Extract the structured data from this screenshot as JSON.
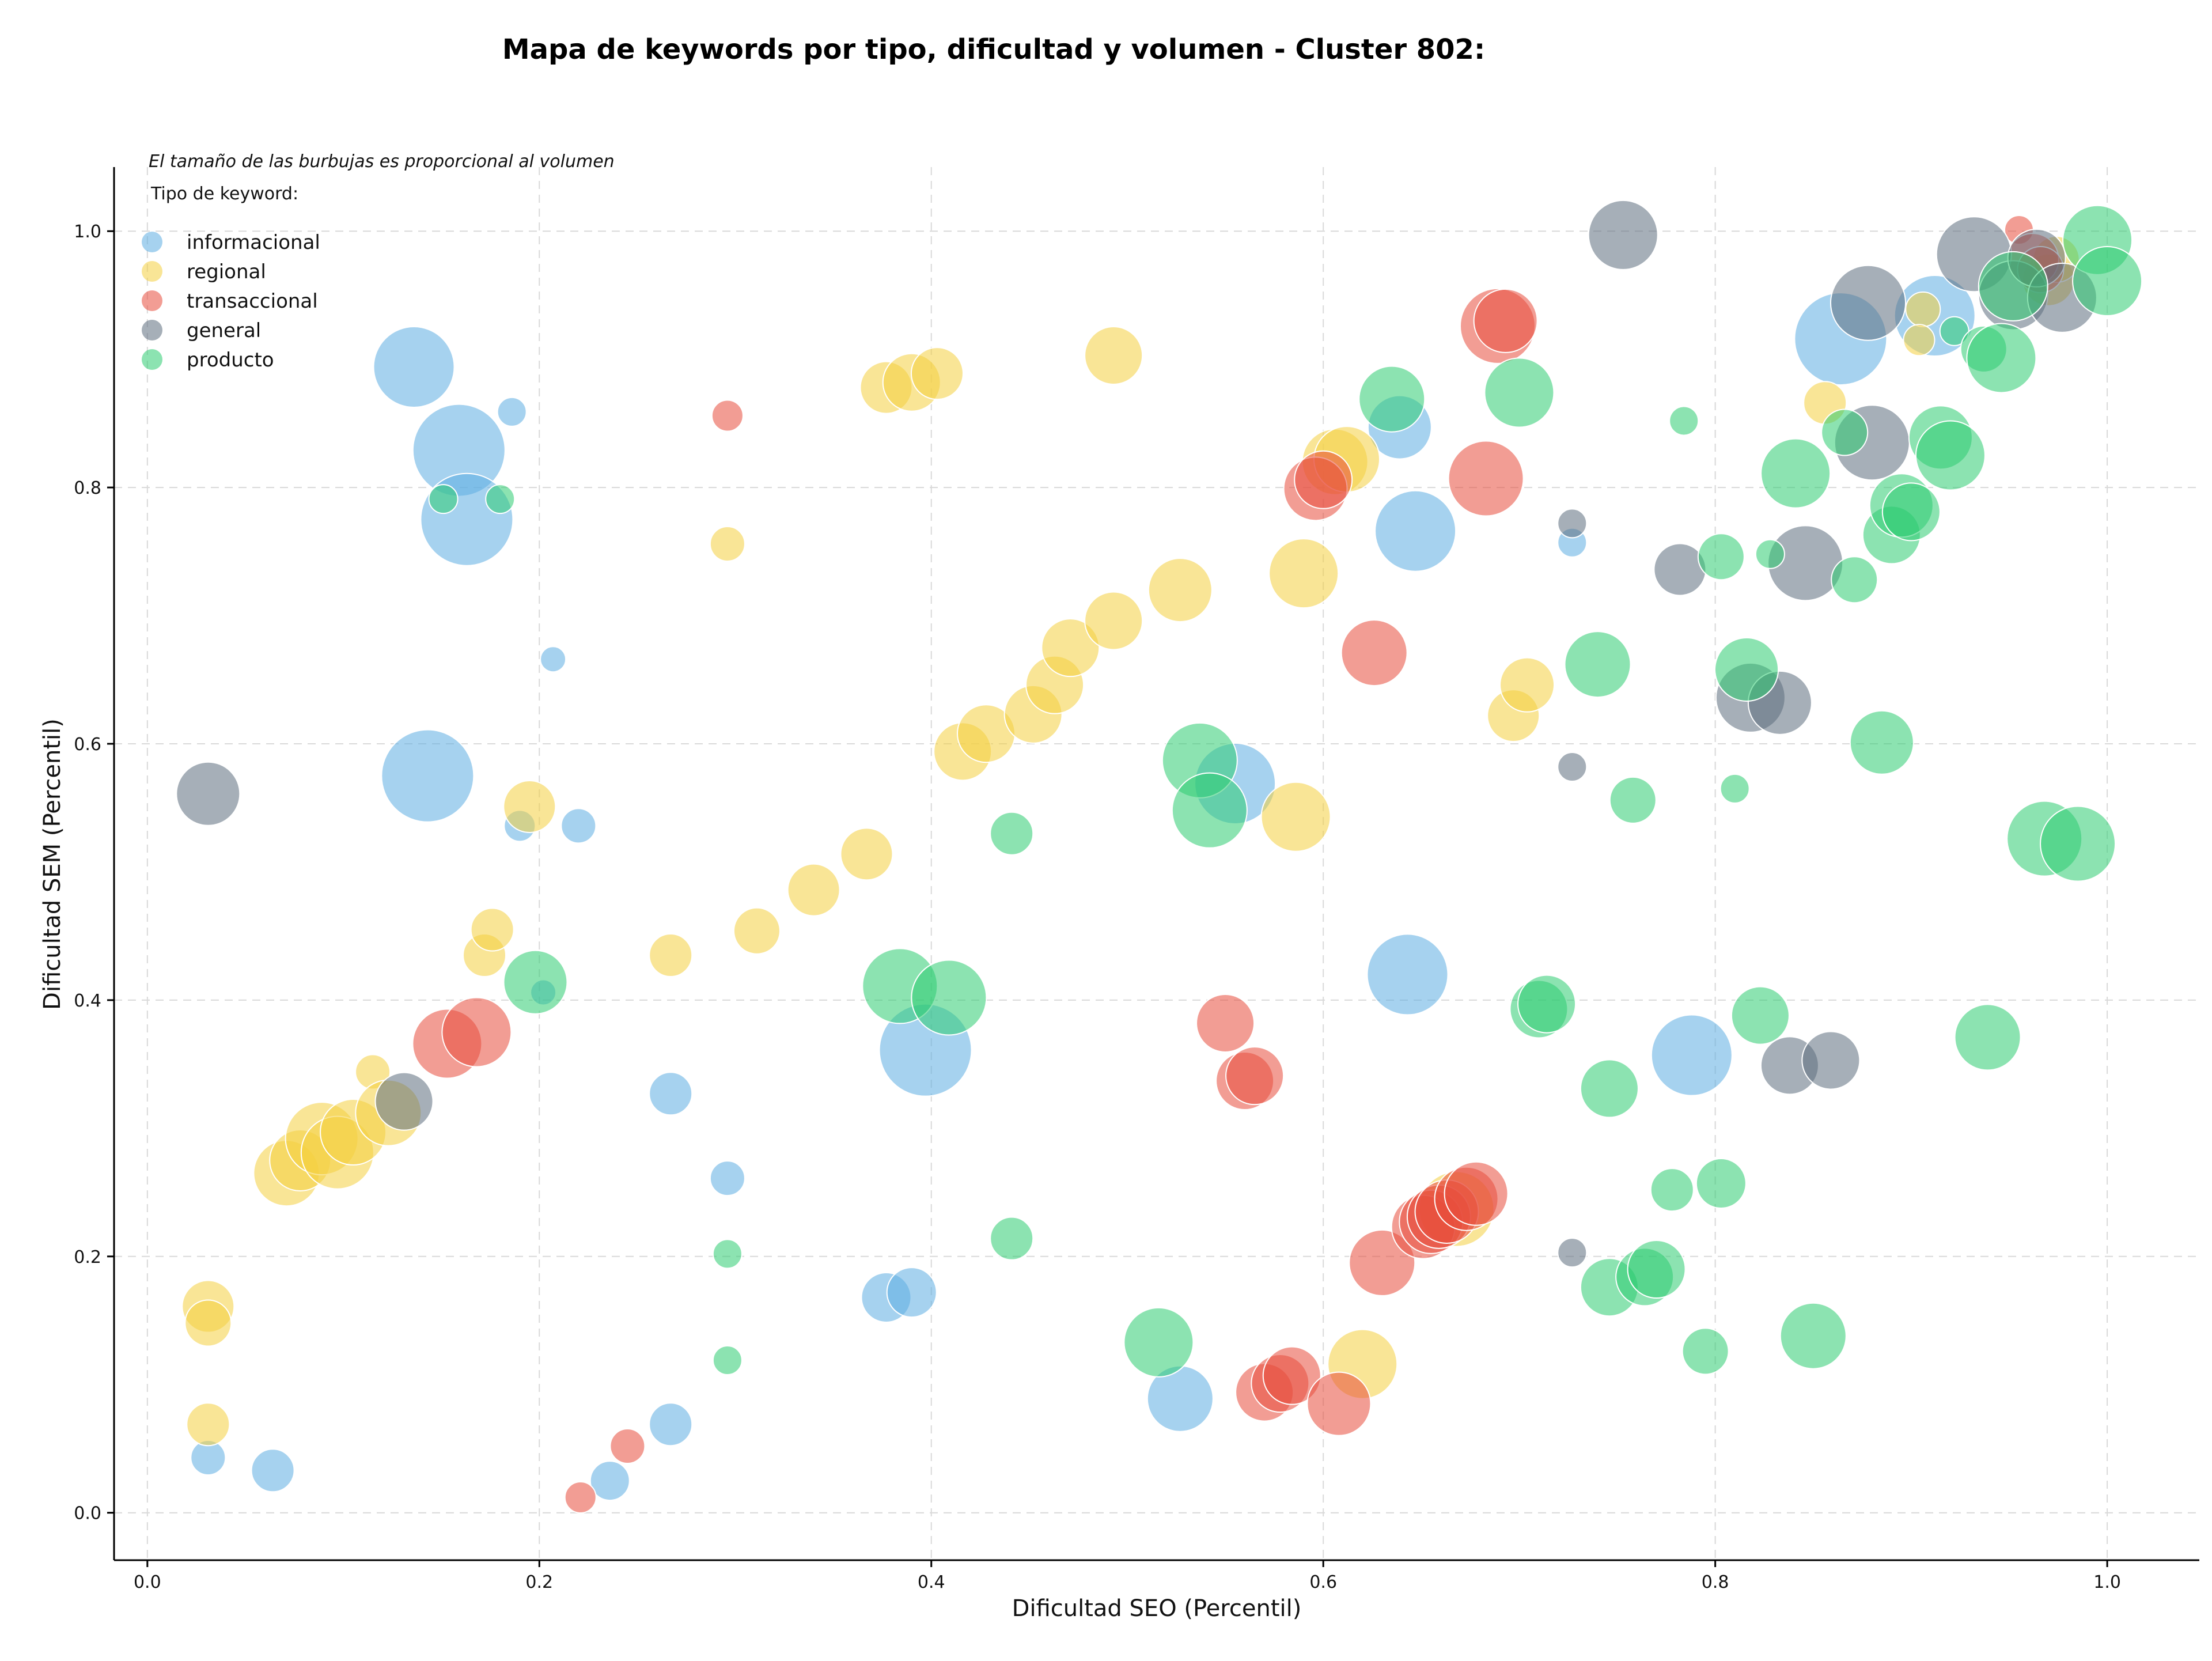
{
  "chart_data": {
    "type": "scatter",
    "title": "Mapa de keywords por tipo, dificultad y volumen - Cluster 802:",
    "xlabel": "Dificultad SEO (Percentil)",
    "ylabel": "Dificultad SEM (Percentil)",
    "note": "El tamaño de las burbujas es proporcional al volumen",
    "legend_title": "Tipo de keyword:",
    "legend_position": "top-left",
    "xlim": [
      -0.017,
      1.047
    ],
    "ylim": [
      -0.037,
      1.05
    ],
    "xticks": [
      "0.0",
      "0.2",
      "0.4",
      "0.6",
      "0.8",
      "1.0"
    ],
    "yticks": [
      "0.0",
      "0.2",
      "0.4",
      "0.6",
      "0.8",
      "1.0"
    ],
    "grid": true,
    "series": [
      {
        "name": "informacional",
        "color": "#5dade2",
        "points": [
          [
            0.136,
            0.894,
            70
          ],
          [
            0.159,
            0.829,
            80
          ],
          [
            0.163,
            0.775,
            80
          ],
          [
            0.186,
            0.859,
            25
          ],
          [
            0.207,
            0.666,
            22
          ],
          [
            0.143,
            0.575,
            80
          ],
          [
            0.19,
            0.536,
            27
          ],
          [
            0.22,
            0.536,
            30
          ],
          [
            0.202,
            0.406,
            22
          ],
          [
            0.267,
            0.327,
            37
          ],
          [
            0.296,
            0.261,
            30
          ],
          [
            0.397,
            0.361,
            80
          ],
          [
            0.377,
            0.168,
            43
          ],
          [
            0.39,
            0.172,
            43
          ],
          [
            0.267,
            0.069,
            37
          ],
          [
            0.236,
            0.025,
            34
          ],
          [
            0.064,
            0.033,
            37
          ],
          [
            0.031,
            0.043,
            30
          ],
          [
            0.527,
            0.089,
            57
          ],
          [
            0.555,
            0.569,
            70
          ],
          [
            0.639,
            0.847,
            55
          ],
          [
            0.647,
            0.766,
            70
          ],
          [
            0.643,
            0.42,
            70
          ],
          [
            0.727,
            0.757,
            25
          ],
          [
            0.788,
            0.357,
            70
          ],
          [
            0.864,
            0.916,
            80
          ],
          [
            0.912,
            0.934,
            70
          ]
        ]
      },
      {
        "name": "regional",
        "color": "#f4d03f",
        "points": [
          [
            0.071,
            0.265,
            57
          ],
          [
            0.078,
            0.275,
            53
          ],
          [
            0.089,
            0.292,
            63
          ],
          [
            0.097,
            0.281,
            63
          ],
          [
            0.105,
            0.297,
            57
          ],
          [
            0.115,
            0.344,
            30
          ],
          [
            0.123,
            0.312,
            57
          ],
          [
            0.031,
            0.161,
            45
          ],
          [
            0.031,
            0.148,
            40
          ],
          [
            0.031,
            0.069,
            37
          ],
          [
            0.172,
            0.435,
            37
          ],
          [
            0.176,
            0.455,
            37
          ],
          [
            0.195,
            0.551,
            45
          ],
          [
            0.267,
            0.435,
            37
          ],
          [
            0.311,
            0.454,
            40
          ],
          [
            0.34,
            0.486,
            45
          ],
          [
            0.367,
            0.514,
            45
          ],
          [
            0.377,
            0.878,
            45
          ],
          [
            0.39,
            0.882,
            50
          ],
          [
            0.403,
            0.889,
            45
          ],
          [
            0.296,
            0.756,
            30
          ],
          [
            0.416,
            0.594,
            50
          ],
          [
            0.428,
            0.608,
            50
          ],
          [
            0.452,
            0.623,
            50
          ],
          [
            0.463,
            0.646,
            50
          ],
          [
            0.471,
            0.675,
            50
          ],
          [
            0.493,
            0.696,
            50
          ],
          [
            0.493,
            0.903,
            50
          ],
          [
            0.527,
            0.72,
            55
          ],
          [
            0.59,
            0.733,
            60
          ],
          [
            0.586,
            0.543,
            60
          ],
          [
            0.606,
            0.82,
            57
          ],
          [
            0.612,
            0.822,
            57
          ],
          [
            0.62,
            0.116,
            60
          ],
          [
            0.668,
            0.237,
            65
          ],
          [
            0.697,
            0.622,
            45
          ],
          [
            0.704,
            0.646,
            47
          ],
          [
            0.856,
            0.866,
            37
          ],
          [
            0.906,
            0.939,
            30
          ],
          [
            0.904,
            0.915,
            27
          ],
          [
            0.97,
            0.962,
            45
          ],
          [
            0.974,
            0.978,
            40
          ]
        ]
      },
      {
        "name": "transaccional",
        "color": "#e74c3c",
        "points": [
          [
            0.153,
            0.366,
            60
          ],
          [
            0.168,
            0.375,
            60
          ],
          [
            0.296,
            0.856,
            27
          ],
          [
            0.221,
            0.012,
            27
          ],
          [
            0.245,
            0.052,
            30
          ],
          [
            0.55,
            0.382,
            50
          ],
          [
            0.56,
            0.337,
            50
          ],
          [
            0.565,
            0.341,
            50
          ],
          [
            0.57,
            0.094,
            50
          ],
          [
            0.578,
            0.101,
            50
          ],
          [
            0.584,
            0.107,
            50
          ],
          [
            0.596,
            0.799,
            55
          ],
          [
            0.6,
            0.806,
            50
          ],
          [
            0.608,
            0.085,
            55
          ],
          [
            0.626,
            0.671,
            57
          ],
          [
            0.63,
            0.195,
            57
          ],
          [
            0.651,
            0.223,
            55
          ],
          [
            0.655,
            0.227,
            55
          ],
          [
            0.659,
            0.231,
            55
          ],
          [
            0.663,
            0.235,
            55
          ],
          [
            0.673,
            0.245,
            55
          ],
          [
            0.678,
            0.249,
            55
          ],
          [
            0.683,
            0.807,
            65
          ],
          [
            0.689,
            0.926,
            65
          ],
          [
            0.693,
            0.93,
            55
          ],
          [
            0.955,
            1.001,
            25
          ],
          [
            0.962,
            0.978,
            45
          ],
          [
            0.966,
            0.97,
            40
          ]
        ]
      },
      {
        "name": "general",
        "color": "#5d6d7e",
        "points": [
          [
            0.031,
            0.561,
            55
          ],
          [
            0.131,
            0.321,
            50
          ],
          [
            0.753,
            0.997,
            60
          ],
          [
            0.727,
            0.772,
            25
          ],
          [
            0.727,
            0.582,
            25
          ],
          [
            0.727,
            0.203,
            25
          ],
          [
            0.782,
            0.736,
            45
          ],
          [
            0.818,
            0.636,
            60
          ],
          [
            0.833,
            0.632,
            55
          ],
          [
            0.838,
            0.349,
            50
          ],
          [
            0.846,
            0.741,
            65
          ],
          [
            0.859,
            0.353,
            50
          ],
          [
            0.878,
            0.944,
            65
          ],
          [
            0.88,
            0.835,
            65
          ],
          [
            0.932,
            0.982,
            65
          ],
          [
            0.952,
            0.95,
            60
          ],
          [
            0.964,
            0.979,
            50
          ],
          [
            0.977,
            0.948,
            60
          ]
        ]
      },
      {
        "name": "producto",
        "color": "#2ecc71",
        "points": [
          [
            0.151,
            0.791,
            25
          ],
          [
            0.18,
            0.791,
            25
          ],
          [
            0.198,
            0.414,
            55
          ],
          [
            0.296,
            0.202,
            25
          ],
          [
            0.296,
            0.119,
            25
          ],
          [
            0.384,
            0.411,
            65
          ],
          [
            0.409,
            0.402,
            65
          ],
          [
            0.441,
            0.53,
            37
          ],
          [
            0.441,
            0.214,
            37
          ],
          [
            0.516,
            0.133,
            60
          ],
          [
            0.537,
            0.587,
            65
          ],
          [
            0.542,
            0.548,
            65
          ],
          [
            0.635,
            0.869,
            57
          ],
          [
            0.7,
            0.874,
            60
          ],
          [
            0.71,
            0.393,
            50
          ],
          [
            0.714,
            0.397,
            50
          ],
          [
            0.74,
            0.662,
            57
          ],
          [
            0.746,
            0.176,
            50
          ],
          [
            0.746,
            0.331,
            50
          ],
          [
            0.758,
            0.556,
            40
          ],
          [
            0.764,
            0.184,
            50
          ],
          [
            0.77,
            0.19,
            50
          ],
          [
            0.778,
            0.252,
            37
          ],
          [
            0.784,
            0.852,
            25
          ],
          [
            0.795,
            0.126,
            40
          ],
          [
            0.803,
            0.746,
            40
          ],
          [
            0.803,
            0.257,
            43
          ],
          [
            0.81,
            0.565,
            25
          ],
          [
            0.816,
            0.658,
            55
          ],
          [
            0.823,
            0.388,
            50
          ],
          [
            0.828,
            0.748,
            25
          ],
          [
            0.841,
            0.811,
            60
          ],
          [
            0.85,
            0.138,
            57
          ],
          [
            0.866,
            0.843,
            40
          ],
          [
            0.871,
            0.728,
            40
          ],
          [
            0.885,
            0.601,
            55
          ],
          [
            0.89,
            0.763,
            50
          ],
          [
            0.895,
            0.786,
            55
          ],
          [
            0.9,
            0.781,
            50
          ],
          [
            0.915,
            0.839,
            55
          ],
          [
            0.92,
            0.825,
            60
          ],
          [
            0.922,
            0.922,
            25
          ],
          [
            0.937,
            0.908,
            40
          ],
          [
            0.939,
            0.371,
            57
          ],
          [
            0.946,
            0.901,
            60
          ],
          [
            0.952,
            0.957,
            60
          ],
          [
            0.968,
            0.526,
            65
          ],
          [
            0.985,
            0.522,
            65
          ],
          [
            0.995,
            0.993,
            60
          ],
          [
            1.0,
            0.961,
            60
          ]
        ]
      }
    ]
  }
}
